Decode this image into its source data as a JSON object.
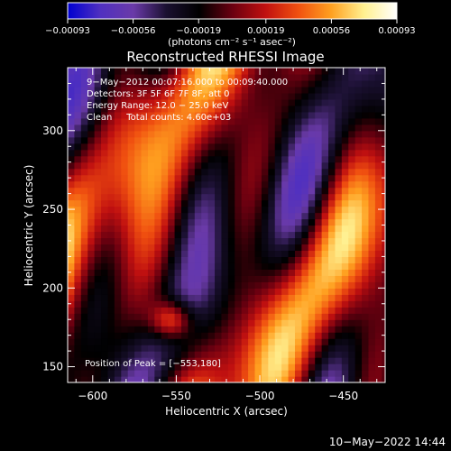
{
  "chart_data": {
    "type": "heatmap",
    "title": "Reconstructed RHESSI Image",
    "xlabel": "Heliocentric X (arcsec)",
    "ylabel": "Heliocentric Y (arcsec)",
    "xlim": [
      -615,
      -425
    ],
    "ylim": [
      140,
      340
    ],
    "x_ticks": [
      -600,
      -550,
      -500,
      -450
    ],
    "y_ticks": [
      150,
      200,
      250,
      300
    ],
    "x_tick_labels": [
      "−600",
      "−550",
      "−500",
      "−450"
    ],
    "y_tick_labels": [
      "150",
      "200",
      "250",
      "300"
    ],
    "colorbar": {
      "range": [
        -0.00093,
        0.00093
      ],
      "tick_values": [
        -0.00093,
        -0.00056,
        -0.00019,
        0.00019,
        0.00056,
        0.00093
      ],
      "tick_labels": [
        "−0.00093",
        "−0.00056",
        "−0.00019",
        "0.00019",
        "0.00056",
        "0.00093"
      ],
      "units": "(photons cm⁻² s⁻¹ asec⁻²)"
    },
    "colormap": [
      "#0000d0",
      "#5030c0",
      "#6a3aa8",
      "#1a1030",
      "#000000",
      "#6a0010",
      "#c01010",
      "#f05010",
      "#ffa020",
      "#fff090",
      "#ffffff"
    ],
    "annotations": [
      "9−May−2012 00:07:16.000 to 00:09:40.000",
      "Detectors: 3F 5F 6F 7F 8F, att 0",
      "Energy Range: 12.0 − 25.0 keV",
      "Clean     Total counts: 4.60e+03"
    ],
    "peak_label": "Position of Peak = [−553,180]",
    "peak_position": [
      -553,
      180
    ]
  },
  "footer": {
    "timestamp": "10−May−2022 14:44"
  }
}
